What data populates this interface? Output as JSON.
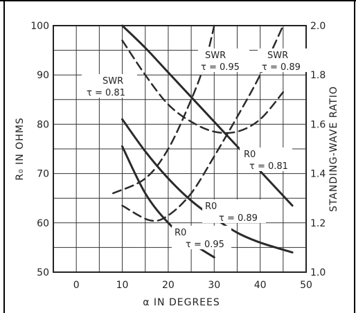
{
  "chart_data": {
    "type": "line",
    "xlabel": "α IN DEGREES",
    "ylabel": "R₀ IN OHMS",
    "y2label": "STANDING-WAVE RATIO",
    "xlim": [
      -5,
      50
    ],
    "ylim": [
      50,
      100
    ],
    "y2lim": [
      1.0,
      2.0
    ],
    "xticks": [
      "0",
      "10",
      "20",
      "30",
      "40",
      "50"
    ],
    "yticks": [
      "50",
      "60",
      "70",
      "80",
      "90",
      "100"
    ],
    "y2ticks": [
      "1.0",
      "1.2",
      "1.4",
      "1.6",
      "1.8",
      "2.0"
    ],
    "grid": true,
    "series": [
      {
        "name": "R0 τ = 0.81",
        "axis": "left",
        "style": "solid",
        "x": [
          10,
          15,
          20,
          25,
          30,
          35,
          40,
          47
        ],
        "y": [
          100,
          95.5,
          90.5,
          85.5,
          80.5,
          75.5,
          70.5,
          63.5
        ]
      },
      {
        "name": "R0 τ = 0.89",
        "axis": "left",
        "style": "solid",
        "x": [
          10,
          15,
          20,
          25,
          30,
          35,
          40,
          47
        ],
        "y": [
          81,
          74.5,
          69,
          64.5,
          61,
          58,
          56,
          54
        ]
      },
      {
        "name": "R0 τ = 0.95",
        "axis": "left",
        "style": "solid",
        "x": [
          10,
          15,
          20,
          25,
          30
        ],
        "y": [
          75.5,
          66,
          60,
          56,
          53
        ]
      },
      {
        "name": "SWR τ = 0.81",
        "axis": "right",
        "style": "dashed",
        "x": [
          10,
          15,
          20,
          25,
          30,
          35,
          40,
          45
        ],
        "y": [
          1.94,
          1.8,
          1.68,
          1.61,
          1.57,
          1.57,
          1.62,
          1.73
        ]
      },
      {
        "name": "SWR τ = 0.95",
        "axis": "right",
        "style": "dashed",
        "x": [
          8,
          15,
          20,
          25,
          28,
          30
        ],
        "y": [
          1.32,
          1.38,
          1.5,
          1.7,
          1.85,
          2.0
        ]
      },
      {
        "name": "SWR τ = 0.89",
        "axis": "right",
        "style": "dashed",
        "x": [
          10,
          16,
          20,
          25,
          30,
          35,
          40,
          45
        ],
        "y": [
          1.27,
          1.21,
          1.23,
          1.32,
          1.47,
          1.63,
          1.8,
          2.0
        ]
      }
    ],
    "annotations": [
      {
        "line1": "SWR",
        "line2": "τ = 0.81"
      },
      {
        "line1": "SWR",
        "line2": "τ = 0.95"
      },
      {
        "line1": "SWR",
        "line2": "τ = 0.89"
      },
      {
        "line1": "R0",
        "line2": "τ = 0.81"
      },
      {
        "line1": "R0",
        "line2": "τ = 0.89"
      },
      {
        "line1": "R0",
        "line2": "τ = 0.95"
      }
    ]
  }
}
